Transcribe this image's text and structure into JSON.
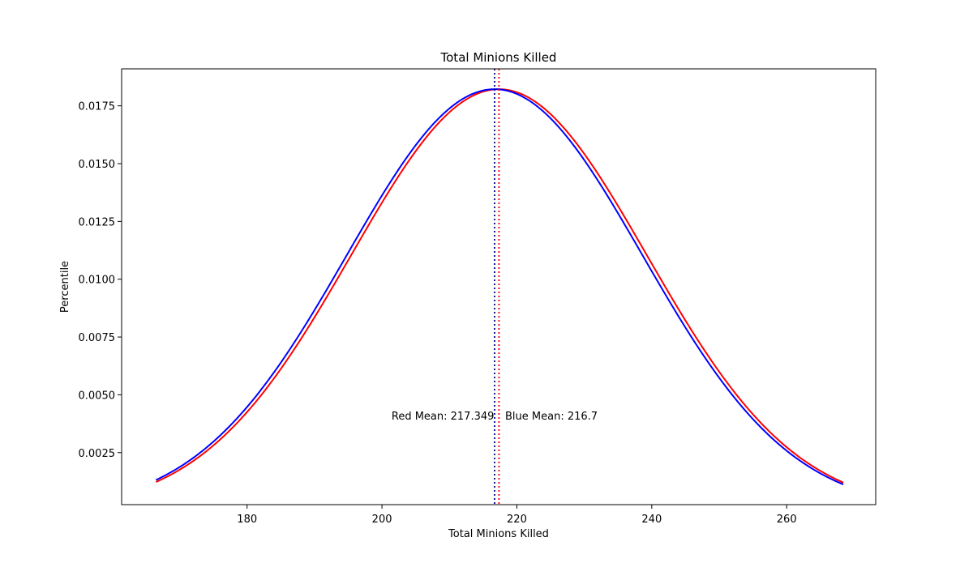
{
  "chart_data": {
    "type": "line",
    "title": "Total Minions Killed",
    "xlabel": "Total Minions Killed",
    "ylabel": "Percentile",
    "xlim": [
      161.4,
      273.2
    ],
    "ylim": [
      0.00025,
      0.0191
    ],
    "x_ticks": [
      180,
      200,
      220,
      240,
      260
    ],
    "y_ticks": [
      0.0025,
      0.005,
      0.0075,
      0.01,
      0.0125,
      0.015,
      0.0175
    ],
    "x_tick_labels": [
      "180",
      "200",
      "220",
      "240",
      "260"
    ],
    "y_tick_labels": [
      "0.0025",
      "0.0050",
      "0.0075",
      "0.0100",
      "0.0125",
      "0.0150",
      "0.0175"
    ],
    "grid": false,
    "series": [
      {
        "id": "red",
        "color": "#ff0000",
        "mean": 217.349,
        "std": 21.9,
        "x_start": 166.5,
        "x_end": 268.4,
        "x": [
          166.5,
          176.7,
          186.9,
          197.1,
          207.2,
          217.3,
          227.5,
          237.7,
          247.9,
          258.1,
          268.4
        ],
        "y": [
          0.00124,
          0.00347,
          0.00746,
          0.01282,
          0.01638,
          0.01822,
          0.01638,
          0.01282,
          0.00746,
          0.00347,
          0.00124
        ]
      },
      {
        "id": "blue",
        "color": "#0000ff",
        "mean": 216.7,
        "std": 21.9,
        "x_start": 166.5,
        "x_end": 268.4,
        "x": [
          166.5,
          176.7,
          186.9,
          196.5,
          206.6,
          216.7,
          226.9,
          237.1,
          247.3,
          257.5,
          268.4
        ],
        "y": [
          0.00131,
          0.00361,
          0.00764,
          0.01282,
          0.01638,
          0.01822,
          0.01638,
          0.01282,
          0.00746,
          0.00339,
          0.00114
        ]
      }
    ],
    "mean_lines": [
      {
        "name": "red-mean-line",
        "x": 217.349,
        "color": "#ff0000",
        "style": "dotted"
      },
      {
        "name": "blue-mean-line",
        "x": 216.7,
        "color": "#00008b",
        "style": "dotted"
      }
    ],
    "annotations": [
      {
        "name": "red-mean-annotation",
        "text": "Red Mean: 217.349",
        "x": 217.349,
        "y": 0.0041,
        "align": "right"
      },
      {
        "name": "blue-mean-annotation",
        "text": "Blue Mean: 216.7",
        "x": 216.7,
        "y": 0.0041,
        "align": "left"
      }
    ]
  }
}
